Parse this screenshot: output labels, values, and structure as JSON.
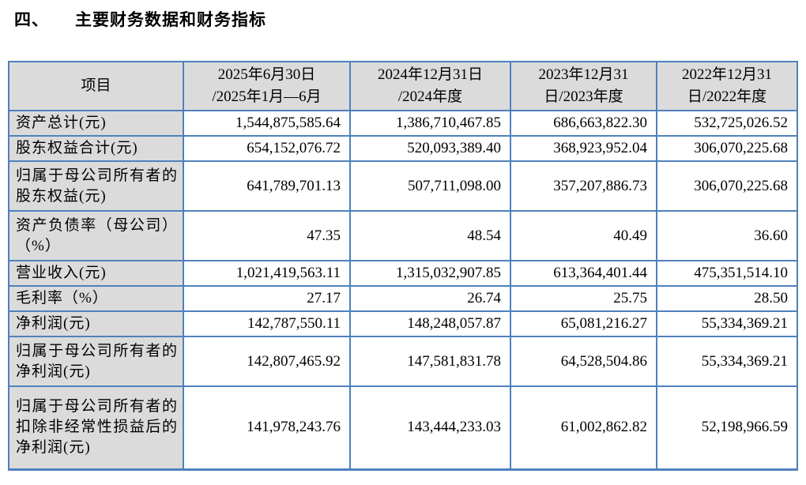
{
  "title": {
    "number": "四、",
    "text": "主要财务数据和财务指标"
  },
  "colors": {
    "border": "#4f81bd",
    "shaded_bg": "#dbdbdb"
  },
  "table": {
    "columns": [
      "项目",
      "2025年6月30日\n/2025年1月—6月",
      "2024年12月31日\n/2024年度",
      "2023年12月31\n日/2023年度",
      "2022年12月31\n日/2022年度"
    ],
    "rows": [
      {
        "label": "资产总计(元)",
        "values": [
          "1,544,875,585.64",
          "1,386,710,467.85",
          "686,663,822.30",
          "532,725,026.52"
        ]
      },
      {
        "label": "股东权益合计(元)",
        "values": [
          "654,152,076.72",
          "520,093,389.40",
          "368,923,952.04",
          "306,070,225.68"
        ]
      },
      {
        "label": "归属于母公司所有者的股东权益(元)",
        "values": [
          "641,789,701.13",
          "507,711,098.00",
          "357,207,886.73",
          "306,070,225.68"
        ]
      },
      {
        "label": "资产负债率（母公司）（%）",
        "values": [
          "47.35",
          "48.54",
          "40.49",
          "36.60"
        ]
      },
      {
        "label": "营业收入(元)",
        "values": [
          "1,021,419,563.11",
          "1,315,032,907.85",
          "613,364,401.44",
          "475,351,514.10"
        ]
      },
      {
        "label": "毛利率（%）",
        "values": [
          "27.17",
          "26.74",
          "25.75",
          "28.50"
        ]
      },
      {
        "label": "净利润(元)",
        "values": [
          "142,787,550.11",
          "148,248,057.87",
          "65,081,216.27",
          "55,334,369.21"
        ]
      },
      {
        "label": "归属于母公司所有者的净利润(元)",
        "values": [
          "142,807,465.92",
          "147,581,831.78",
          "64,528,504.86",
          "55,334,369.21"
        ]
      },
      {
        "label": "归属于母公司所有者的扣除非经常性损益后的净利润(元)",
        "values": [
          "141,978,243.76",
          "143,444,233.03",
          "61,002,862.82",
          "52,198,966.59"
        ]
      }
    ]
  }
}
